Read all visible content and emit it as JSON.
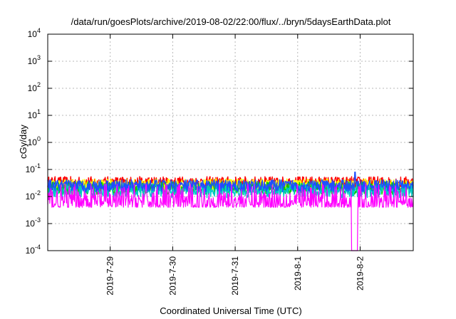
{
  "chart_data": {
    "type": "line",
    "title": "/data/run/goesPlots/archive/2019-08-02/22:00/flux/../bryn/5daysEarthData.plot",
    "xlabel": "Coordinated Universal Time (UTC)",
    "ylabel": "cGy/day",
    "yscale": "log",
    "ylim": [
      0.0001,
      10000
    ],
    "xlim": [
      0,
      5.85
    ],
    "grid": true,
    "y_ticks": [
      {
        "value": 0.0001,
        "base": "10",
        "exp": "-4"
      },
      {
        "value": 0.001,
        "base": "10",
        "exp": "-3"
      },
      {
        "value": 0.01,
        "base": "10",
        "exp": "-2"
      },
      {
        "value": 0.1,
        "base": "10",
        "exp": "-1"
      },
      {
        "value": 1,
        "base": "10",
        "exp": "0"
      },
      {
        "value": 10,
        "base": "10",
        "exp": "1"
      },
      {
        "value": 100,
        "base": "10",
        "exp": "2"
      },
      {
        "value": 1000,
        "base": "10",
        "exp": "3"
      },
      {
        "value": 10000,
        "base": "10",
        "exp": "4"
      }
    ],
    "x_ticks": [
      {
        "x": 1,
        "label": "2019-7-29"
      },
      {
        "x": 2,
        "label": "2019-7-30"
      },
      {
        "x": 3,
        "label": "2019-7-31"
      },
      {
        "x": 4,
        "label": "2019-8-1"
      },
      {
        "x": 5,
        "label": "2019-8-2"
      }
    ],
    "series": [
      {
        "color": "#ff0000",
        "low": 0.02,
        "high": 0.055
      },
      {
        "color": "#ffff00",
        "low": 0.018,
        "high": 0.045
      },
      {
        "color": "#00cc00",
        "low": 0.012,
        "high": 0.035
      },
      {
        "color": "#00c8c8",
        "low": 0.009,
        "high": 0.03
      },
      {
        "color": "#1f4fff",
        "low": 0.015,
        "high": 0.042
      },
      {
        "color": "#ff00ff",
        "low": 0.004,
        "high": 0.03
      }
    ],
    "spike": {
      "x": 4.92,
      "value": 0.08
    },
    "dropout": {
      "x_from": 4.86,
      "x_to": 4.96,
      "value": 0.0001
    }
  }
}
